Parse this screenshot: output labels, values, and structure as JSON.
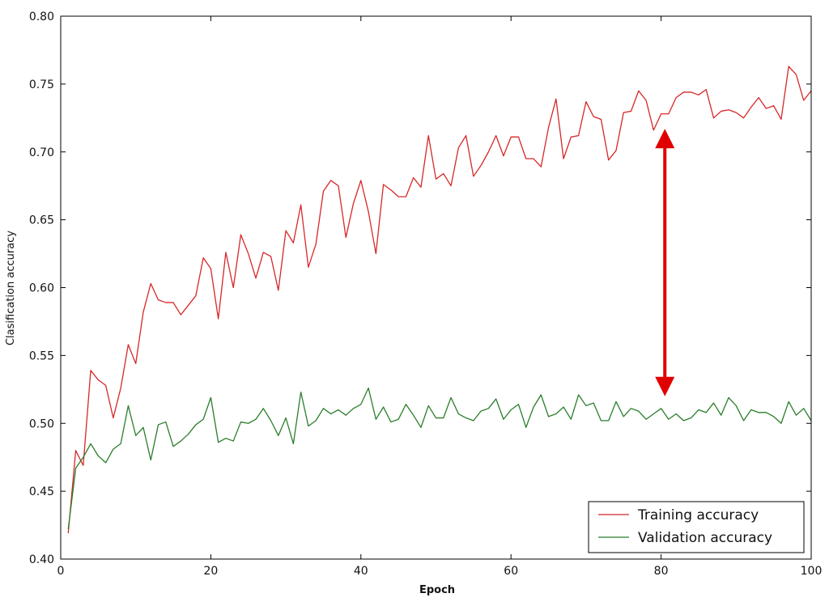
{
  "chart_data": {
    "type": "line",
    "xlabel": "Epoch",
    "ylabel": "Clasification accuracy",
    "xlim": [
      0,
      100
    ],
    "ylim": [
      0.4,
      0.8
    ],
    "xticks": [
      0,
      20,
      40,
      60,
      80,
      100
    ],
    "xtick_labels": [
      "0",
      "20",
      "40",
      "60",
      "80",
      "100"
    ],
    "yticks": [
      0.4,
      0.45,
      0.5,
      0.55,
      0.6,
      0.65,
      0.7,
      0.75,
      0.8
    ],
    "ytick_labels": [
      "0.40",
      "0.45",
      "0.50",
      "0.55",
      "0.60",
      "0.65",
      "0.70",
      "0.75",
      "0.80"
    ],
    "legend_position": "bottom-right",
    "series": [
      {
        "name": "Training accuracy",
        "color": "#d62728",
        "x": [
          1,
          2,
          3,
          4,
          5,
          6,
          7,
          8,
          9,
          10,
          11,
          12,
          13,
          14,
          15,
          16,
          17,
          18,
          19,
          20,
          21,
          22,
          23,
          24,
          25,
          26,
          27,
          28,
          29,
          30,
          31,
          32,
          33,
          34,
          35,
          36,
          37,
          38,
          39,
          40,
          41,
          42,
          43,
          44,
          45,
          46,
          47,
          48,
          49,
          50,
          51,
          52,
          53,
          54,
          55,
          56,
          57,
          58,
          59,
          60,
          61,
          62,
          63,
          64,
          65,
          66,
          67,
          68,
          69,
          70,
          71,
          72,
          73,
          74,
          75,
          76,
          77,
          78,
          79,
          80,
          81,
          82,
          83,
          84,
          85,
          86,
          87,
          88,
          89,
          90,
          91,
          92,
          93,
          94,
          95,
          96,
          97,
          98,
          99,
          100
        ],
        "values": [
          0.419,
          0.48,
          0.469,
          0.539,
          0.532,
          0.528,
          0.504,
          0.526,
          0.558,
          0.544,
          0.582,
          0.603,
          0.591,
          0.589,
          0.589,
          0.58,
          0.587,
          0.594,
          0.622,
          0.614,
          0.577,
          0.626,
          0.6,
          0.639,
          0.625,
          0.607,
          0.626,
          0.623,
          0.598,
          0.642,
          0.633,
          0.661,
          0.615,
          0.632,
          0.671,
          0.679,
          0.675,
          0.637,
          0.662,
          0.679,
          0.656,
          0.625,
          0.676,
          0.672,
          0.667,
          0.667,
          0.681,
          0.674,
          0.712,
          0.68,
          0.684,
          0.675,
          0.703,
          0.712,
          0.682,
          0.69,
          0.7,
          0.712,
          0.697,
          0.711,
          0.711,
          0.695,
          0.695,
          0.689,
          0.718,
          0.739,
          0.695,
          0.711,
          0.712,
          0.737,
          0.726,
          0.724,
          0.694,
          0.701,
          0.729,
          0.73,
          0.745,
          0.738,
          0.716,
          0.728,
          0.728,
          0.74,
          0.744,
          0.744,
          0.742,
          0.746,
          0.725,
          0.73,
          0.731,
          0.729,
          0.725,
          0.733,
          0.74,
          0.732,
          0.734,
          0.724,
          0.763,
          0.757,
          0.738,
          0.745
        ]
      },
      {
        "name": "Validation accuracy",
        "color": "#2a7d2a",
        "x": [
          1,
          2,
          3,
          4,
          5,
          6,
          7,
          8,
          9,
          10,
          11,
          12,
          13,
          14,
          15,
          16,
          17,
          18,
          19,
          20,
          21,
          22,
          23,
          24,
          25,
          26,
          27,
          28,
          29,
          30,
          31,
          32,
          33,
          34,
          35,
          36,
          37,
          38,
          39,
          40,
          41,
          42,
          43,
          44,
          45,
          46,
          47,
          48,
          49,
          50,
          51,
          52,
          53,
          54,
          55,
          56,
          57,
          58,
          59,
          60,
          61,
          62,
          63,
          64,
          65,
          66,
          67,
          68,
          69,
          70,
          71,
          72,
          73,
          74,
          75,
          76,
          77,
          78,
          79,
          80,
          81,
          82,
          83,
          84,
          85,
          86,
          87,
          88,
          89,
          90,
          91,
          92,
          93,
          94,
          95,
          96,
          97,
          98,
          99,
          100
        ],
        "values": [
          0.422,
          0.467,
          0.475,
          0.485,
          0.476,
          0.471,
          0.481,
          0.485,
          0.513,
          0.491,
          0.497,
          0.473,
          0.499,
          0.501,
          0.483,
          0.487,
          0.492,
          0.499,
          0.503,
          0.519,
          0.486,
          0.489,
          0.487,
          0.501,
          0.5,
          0.503,
          0.511,
          0.502,
          0.491,
          0.504,
          0.485,
          0.523,
          0.498,
          0.502,
          0.511,
          0.507,
          0.51,
          0.506,
          0.511,
          0.514,
          0.526,
          0.503,
          0.512,
          0.501,
          0.503,
          0.514,
          0.506,
          0.497,
          0.513,
          0.504,
          0.504,
          0.519,
          0.507,
          0.504,
          0.502,
          0.509,
          0.511,
          0.518,
          0.503,
          0.51,
          0.514,
          0.497,
          0.512,
          0.521,
          0.505,
          0.507,
          0.512,
          0.503,
          0.521,
          0.513,
          0.515,
          0.502,
          0.502,
          0.516,
          0.505,
          0.511,
          0.509,
          0.503,
          0.507,
          0.511,
          0.503,
          0.507,
          0.502,
          0.504,
          0.51,
          0.508,
          0.515,
          0.506,
          0.519,
          0.513,
          0.502,
          0.51,
          0.508,
          0.508,
          0.505,
          0.5,
          0.516,
          0.506,
          0.511,
          0.502
        ]
      }
    ],
    "annotations": [
      {
        "type": "double-arrow",
        "x": 80.5,
        "y_from": 0.717,
        "y_to": 0.52,
        "color": "#e00000"
      }
    ]
  }
}
